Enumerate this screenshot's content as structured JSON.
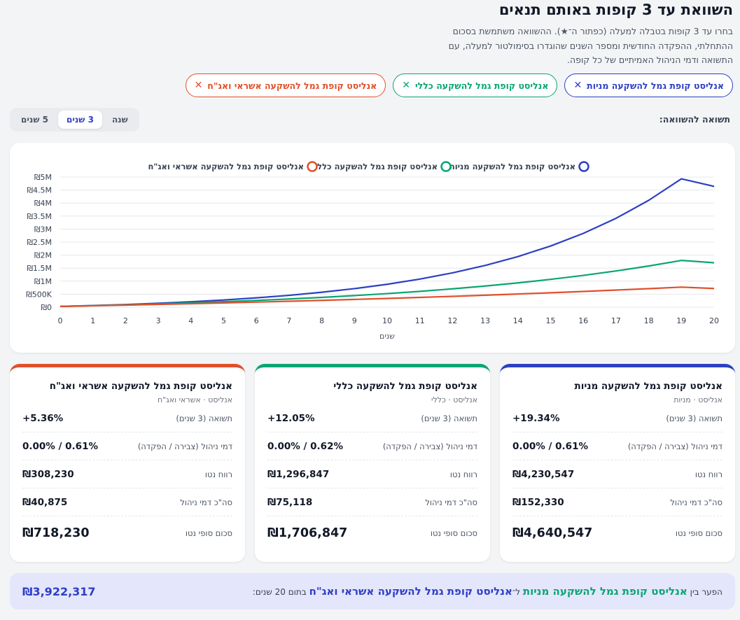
{
  "header": {
    "title": "השוואת עד 3 קופות באותם תנאים",
    "description": "בחרו עד 3 קופות בטבלה למעלה (כפתור ה־★). ההשוואה משתמשת בסכום ההתחלתי, ההפקדה החודשית ומספר השנים שהוגדרו בסימולטור למעלה, עם התשואה ודמי הניהול האמיתיים של כל קופה."
  },
  "chips": [
    {
      "label": "אנליסט קופת גמל להשקעה מניות",
      "close": "✕",
      "color": "#2d3fc4"
    },
    {
      "label": "אנליסט קופת גמל להשקעה כללי",
      "close": "✕",
      "color": "#0aa572"
    },
    {
      "label": "אנליסט קופת גמל להשקעה אשראי ואג\"ח",
      "close": "✕",
      "color": "#e0502b"
    }
  ],
  "return_selector": {
    "label": "תשואה להשוואה:",
    "tabs": [
      "שנה",
      "3 שנים",
      "5 שנים"
    ],
    "active": "3 שנים"
  },
  "chart_data": {
    "type": "line",
    "xlabel": "שנים",
    "x": [
      0,
      1,
      2,
      3,
      4,
      5,
      6,
      7,
      8,
      9,
      10,
      11,
      12,
      13,
      14,
      15,
      16,
      17,
      18,
      19,
      20
    ],
    "ylim": [
      0,
      5000000
    ],
    "y_ticks": [
      "₪0",
      "₪500K",
      "₪1M",
      "₪1.5M",
      "₪2M",
      "₪2.5M",
      "₪3M",
      "₪3.5M",
      "₪4M",
      "₪4.5M",
      "₪5M"
    ],
    "series": [
      {
        "name": "אנליסט קופת גמל להשקעה מניות",
        "color": "#2d3fc4",
        "values": [
          30000,
          63000,
          103000,
          151000,
          208000,
          277000,
          359000,
          456000,
          574000,
          714000,
          881000,
          1081000,
          1320000,
          1605000,
          1945000,
          2351000,
          2836000,
          3415000,
          4106000,
          4931000,
          4640547
        ]
      },
      {
        "name": "אנליסט קופת גמל להשקעה כללי",
        "color": "#0aa572",
        "values": [
          30000,
          59000,
          91000,
          127000,
          167000,
          211000,
          260000,
          315000,
          377000,
          446000,
          523000,
          609000,
          705000,
          813000,
          934000,
          1070000,
          1222000,
          1392000,
          1583000,
          1797000,
          1706847
        ]
      },
      {
        "name": "אנליסט קופת גמל להשקעה אשראי ואג\"ח",
        "color": "#e0502b",
        "values": [
          30000,
          55000,
          80000,
          107000,
          135000,
          165000,
          196000,
          229000,
          263000,
          299000,
          336000,
          376000,
          417000,
          461000,
          507000,
          555000,
          605000,
          658000,
          713000,
          771000,
          718230
        ]
      }
    ]
  },
  "cards": [
    {
      "title": "אנליסט קופת גמל להשקעה מניות",
      "sub": "אנליסט · מניות",
      "color": "#2d3fc4",
      "return_label": "תשואה (3 שנים)",
      "return_value": "+19.34%",
      "fees_label": "דמי ניהול (צבירה / הפקדה)",
      "fees_value": "0.00% / 0.61%",
      "profit_label": "רווח נטו",
      "profit_value": "₪4,230,547",
      "total_fees_label": "סה\"כ דמי ניהול",
      "total_fees_value": "₪152,330",
      "final_label": "סכום סופי נטו",
      "final_value": "₪4,640,547"
    },
    {
      "title": "אנליסט קופת גמל להשקעה כללי",
      "sub": "אנליסט · כללי",
      "color": "#0aa572",
      "return_label": "תשואה (3 שנים)",
      "return_value": "+12.05%",
      "fees_label": "דמי ניהול (צבירה / הפקדה)",
      "fees_value": "0.00% / 0.62%",
      "profit_label": "רווח נטו",
      "profit_value": "₪1,296,847",
      "total_fees_label": "סה\"כ דמי ניהול",
      "total_fees_value": "₪75,118",
      "final_label": "סכום סופי נטו",
      "final_value": "₪1,706,847"
    },
    {
      "title": "אנליסט קופת גמל להשקעה אשראי ואג\"ח",
      "sub": "אנליסט · אשראי ואג\"ח",
      "color": "#e0502b",
      "return_label": "תשואה (3 שנים)",
      "return_value": "+5.36%",
      "fees_label": "דמי ניהול (צבירה / הפקדה)",
      "fees_value": "0.00% / 0.61%",
      "profit_label": "רווח נטו",
      "profit_value": "₪308,230",
      "total_fees_label": "סה\"כ דמי ניהול",
      "total_fees_value": "₪40,875",
      "final_label": "סכום סופי נטו",
      "final_value": "₪718,230"
    }
  ],
  "footer": {
    "prefix": "הפער בין",
    "fund_a": "אנליסט קופת גמל להשקעה מניות",
    "middle": "ל־",
    "fund_b": "אנליסט קופת גמל להשקעה אשראי ואג\"ח",
    "suffix": "בתום 20 שנים:",
    "difference": "₪3,922,317"
  }
}
